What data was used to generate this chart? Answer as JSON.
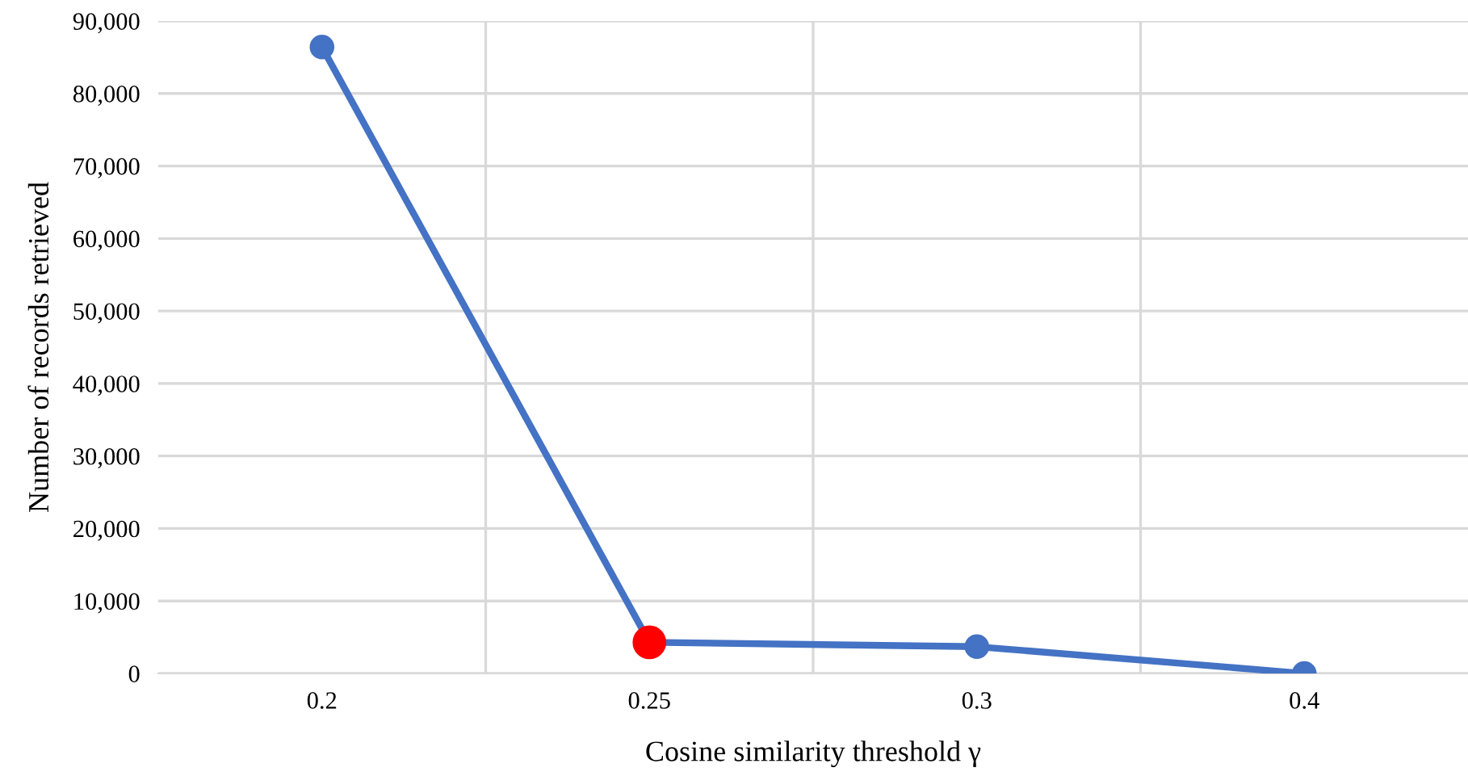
{
  "chart_data": {
    "type": "line",
    "xlabel": "Cosine similarity threshold γ",
    "ylabel": "Number of records retrieved",
    "categories": [
      "0.2",
      "0.25",
      "0.3",
      "0.4"
    ],
    "series": [
      {
        "color": "#4472c4",
        "colors": [
          "#4472c4",
          "#ff0000",
          "#4472c4",
          "#4472c4"
        ],
        "values": [
          86400,
          4300,
          3700,
          0
        ]
      }
    ],
    "ylim": [
      0,
      90000
    ],
    "yticks": [
      0,
      {
        "value": 10000,
        "label": "10,000"
      },
      {
        "value": 20000,
        "label": "20,000"
      },
      {
        "value": 30000,
        "label": "30,000"
      },
      {
        "value": 40000,
        "label": "40,000"
      },
      {
        "value": 50000,
        "label": "50,000"
      },
      {
        "value": 60000,
        "label": "60,000"
      },
      {
        "value": 70000,
        "label": "70,000"
      },
      {
        "value": 80000,
        "label": "80,000"
      },
      {
        "value": 90000,
        "label": "90,000"
      }
    ],
    "grid": true,
    "marker": "circle",
    "line_style": "solid"
  }
}
